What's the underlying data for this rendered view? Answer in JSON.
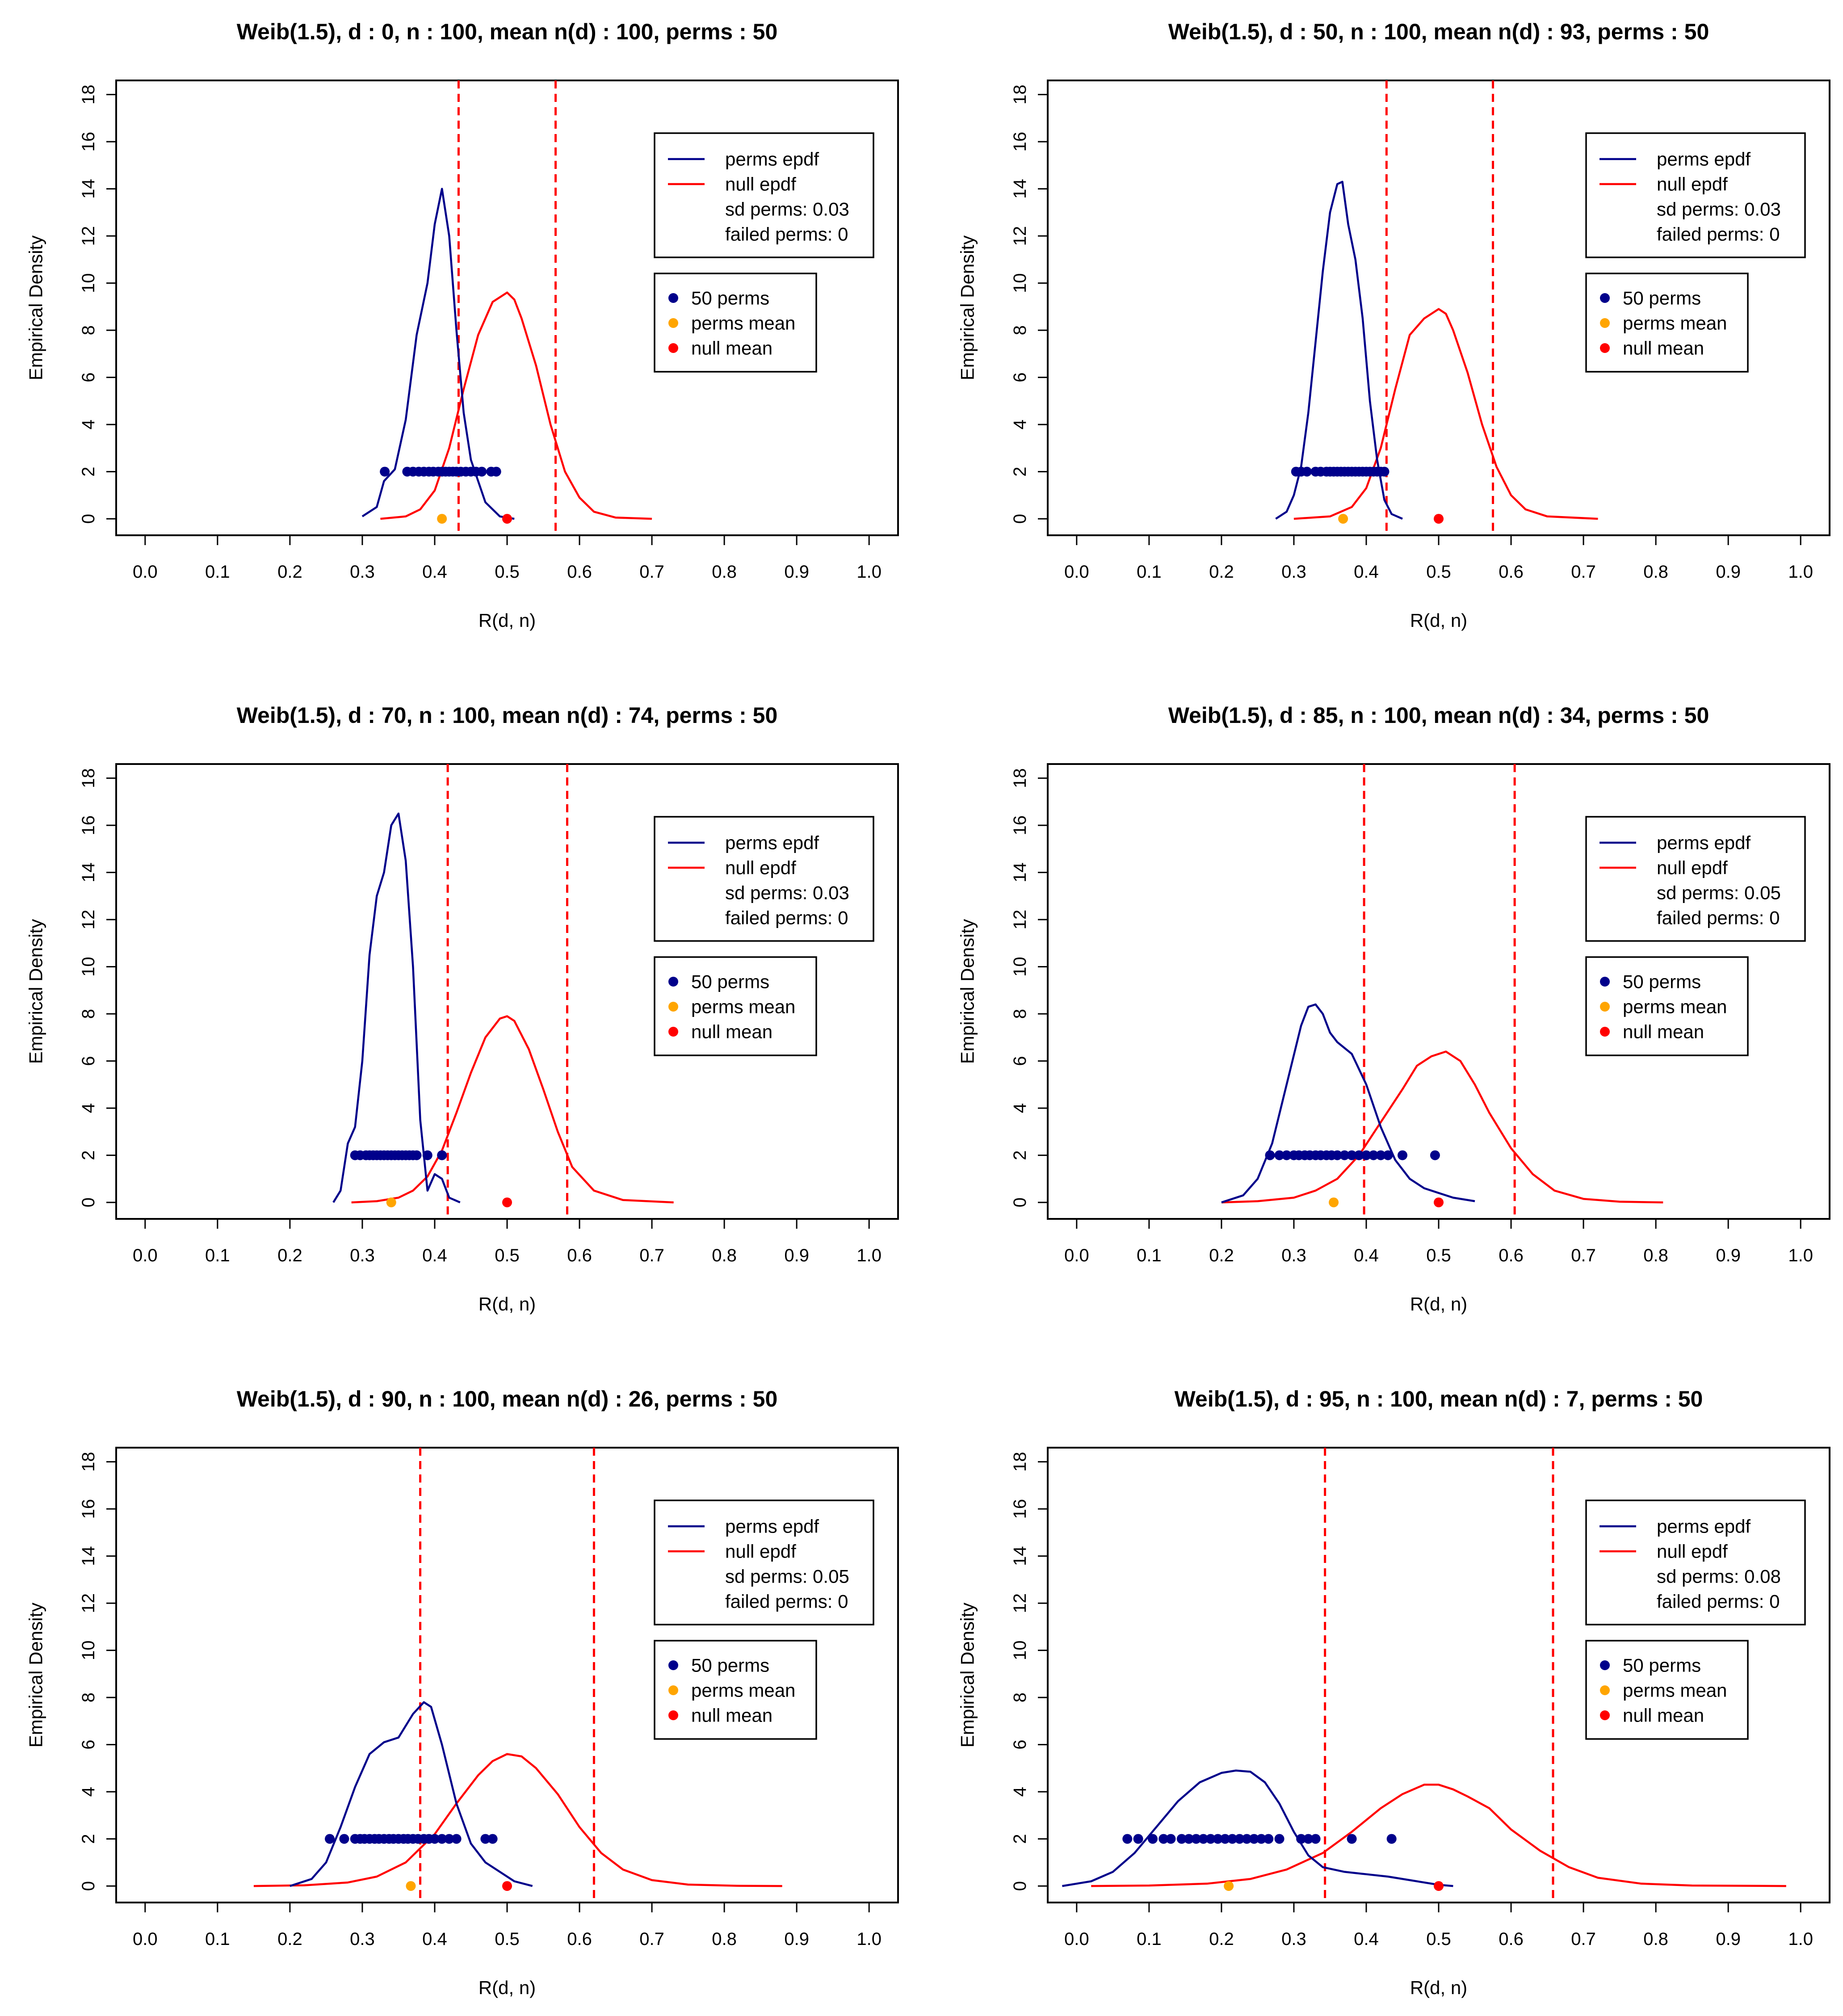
{
  "colors": {
    "perms_epdf": "#00008b",
    "null_epdf": "#ff0000",
    "perms_points": "#00008b",
    "perms_mean": "#ffa500",
    "null_mean": "#ff0000",
    "quantile_lines": "#ff0000"
  },
  "shared": {
    "xlabel": "R(d, n)",
    "ylabel": "Empirical Density",
    "xticks": [
      0.0,
      0.1,
      0.2,
      0.3,
      0.4,
      0.5,
      0.6,
      0.7,
      0.8,
      0.9,
      1.0
    ],
    "xtick_labels": [
      "0.0",
      "0.1",
      "0.2",
      "0.3",
      "0.4",
      "0.5",
      "0.6",
      "0.7",
      "0.8",
      "0.9",
      "1.0"
    ],
    "yticks": [
      0,
      2,
      4,
      6,
      8,
      10,
      12,
      14,
      16,
      18
    ],
    "ytick_labels": [
      "0",
      "2",
      "4",
      "6",
      "8",
      "10",
      "12",
      "14",
      "16",
      "18"
    ],
    "legend1": {
      "perms": "perms epdf",
      "null": "null epdf",
      "sd_prefix": "sd perms: ",
      "failed_prefix": "failed perms: "
    },
    "legend2": {
      "null_mean": "null mean",
      "perms_mean": "perms mean"
    }
  },
  "chart_data": [
    {
      "type": "line",
      "title": "Weib(1.5),  d : 0, n : 100,  mean n(d) : 100,  perms : 50",
      "xlim": [
        -0.04,
        1.04
      ],
      "ylim": [
        -0.7,
        18.6
      ],
      "vlines": [
        0.433,
        0.567
      ],
      "perms_epdf": {
        "x": [
          0.3,
          0.32,
          0.33,
          0.345,
          0.36,
          0.375,
          0.39,
          0.4,
          0.41,
          0.42,
          0.43,
          0.44,
          0.45,
          0.46,
          0.47,
          0.49,
          0.51
        ],
        "y": [
          0.1,
          0.5,
          1.6,
          2.1,
          4.2,
          7.8,
          10.0,
          12.5,
          14.0,
          12.0,
          8.0,
          4.5,
          2.5,
          1.6,
          0.7,
          0.1,
          0.0
        ]
      },
      "null_epdf": {
        "x": [
          0.325,
          0.36,
          0.38,
          0.4,
          0.42,
          0.44,
          0.46,
          0.48,
          0.5,
          0.51,
          0.52,
          0.54,
          0.56,
          0.58,
          0.6,
          0.62,
          0.65,
          0.7
        ],
        "y": [
          0.0,
          0.1,
          0.4,
          1.2,
          3.0,
          5.5,
          7.8,
          9.2,
          9.6,
          9.3,
          8.5,
          6.5,
          4.0,
          2.0,
          0.9,
          0.3,
          0.05,
          0.0
        ]
      },
      "perm_points": [
        0.331,
        0.362,
        0.37,
        0.378,
        0.385,
        0.392,
        0.398,
        0.405,
        0.41,
        0.415,
        0.42,
        0.425,
        0.43,
        0.436,
        0.443,
        0.45,
        0.457,
        0.465,
        0.478,
        0.485
      ],
      "perm_points_y": 2,
      "perms_mean": 0.41,
      "null_mean": 0.5,
      "sd_perms": "0.03",
      "failed_perms": "0",
      "n_perms_label": "50 perms"
    },
    {
      "type": "line",
      "title": "Weib(1.5),  d : 50, n : 100,  mean n(d) : 93,  perms : 50",
      "xlim": [
        -0.04,
        1.04
      ],
      "ylim": [
        -0.7,
        18.6
      ],
      "vlines": [
        0.428,
        0.575
      ],
      "perms_epdf": {
        "x": [
          0.275,
          0.29,
          0.3,
          0.31,
          0.32,
          0.33,
          0.34,
          0.35,
          0.36,
          0.367,
          0.375,
          0.385,
          0.395,
          0.405,
          0.415,
          0.425,
          0.435,
          0.45
        ],
        "y": [
          0.0,
          0.3,
          1.0,
          2.2,
          4.5,
          7.5,
          10.5,
          13.0,
          14.2,
          14.3,
          12.5,
          11.0,
          8.5,
          5.0,
          2.5,
          0.8,
          0.2,
          0.0
        ]
      },
      "null_epdf": {
        "x": [
          0.3,
          0.35,
          0.38,
          0.4,
          0.42,
          0.44,
          0.46,
          0.48,
          0.5,
          0.51,
          0.52,
          0.54,
          0.56,
          0.58,
          0.6,
          0.62,
          0.65,
          0.72
        ],
        "y": [
          0.0,
          0.1,
          0.5,
          1.3,
          3.0,
          5.5,
          7.8,
          8.5,
          8.9,
          8.7,
          8.0,
          6.2,
          4.0,
          2.2,
          1.0,
          0.4,
          0.1,
          0.0
        ]
      },
      "perm_points": [
        0.303,
        0.31,
        0.318,
        0.33,
        0.337,
        0.345,
        0.35,
        0.355,
        0.36,
        0.365,
        0.37,
        0.375,
        0.38,
        0.385,
        0.39,
        0.395,
        0.4,
        0.405,
        0.41,
        0.415,
        0.42,
        0.425
      ],
      "perm_points_y": 2,
      "perms_mean": 0.368,
      "null_mean": 0.5,
      "sd_perms": "0.03",
      "failed_perms": "0",
      "n_perms_label": "50 perms"
    },
    {
      "type": "line",
      "title": "Weib(1.5),  d : 70, n : 100,  mean n(d) : 74,  perms : 50",
      "xlim": [
        -0.04,
        1.04
      ],
      "ylim": [
        -0.7,
        18.6
      ],
      "vlines": [
        0.418,
        0.583
      ],
      "perms_epdf": {
        "x": [
          0.26,
          0.27,
          0.28,
          0.29,
          0.3,
          0.31,
          0.32,
          0.33,
          0.34,
          0.35,
          0.36,
          0.37,
          0.38,
          0.39,
          0.4,
          0.41,
          0.42,
          0.435
        ],
        "y": [
          0.0,
          0.5,
          2.5,
          3.2,
          6.0,
          10.5,
          13.0,
          14.0,
          16.0,
          16.5,
          14.5,
          10.0,
          3.5,
          0.5,
          1.2,
          1.0,
          0.2,
          0.0
        ]
      },
      "null_epdf": {
        "x": [
          0.285,
          0.32,
          0.35,
          0.37,
          0.39,
          0.41,
          0.43,
          0.45,
          0.47,
          0.49,
          0.5,
          0.51,
          0.53,
          0.55,
          0.57,
          0.59,
          0.62,
          0.66,
          0.73
        ],
        "y": [
          0.0,
          0.05,
          0.2,
          0.5,
          1.1,
          2.2,
          3.8,
          5.5,
          7.0,
          7.8,
          7.9,
          7.7,
          6.5,
          4.8,
          3.0,
          1.5,
          0.5,
          0.1,
          0.0
        ]
      },
      "perm_points": [
        0.29,
        0.297,
        0.305,
        0.31,
        0.315,
        0.32,
        0.325,
        0.33,
        0.335,
        0.34,
        0.345,
        0.35,
        0.355,
        0.36,
        0.365,
        0.37,
        0.375,
        0.39,
        0.41
      ],
      "perm_points_y": 2,
      "perms_mean": 0.34,
      "null_mean": 0.5,
      "sd_perms": "0.03",
      "failed_perms": "0",
      "n_perms_label": "50 perms"
    },
    {
      "type": "line",
      "title": "Weib(1.5),  d : 85, n : 100,  mean n(d) : 34,  perms : 50",
      "xlim": [
        -0.04,
        1.04
      ],
      "ylim": [
        -0.7,
        18.6
      ],
      "vlines": [
        0.397,
        0.605
      ],
      "perms_epdf": {
        "x": [
          0.2,
          0.23,
          0.25,
          0.27,
          0.29,
          0.31,
          0.32,
          0.33,
          0.34,
          0.35,
          0.36,
          0.38,
          0.4,
          0.42,
          0.44,
          0.46,
          0.48,
          0.5,
          0.52,
          0.55
        ],
        "y": [
          0.0,
          0.3,
          1.0,
          2.5,
          5.0,
          7.5,
          8.3,
          8.4,
          8.0,
          7.2,
          6.8,
          6.3,
          5.0,
          3.2,
          1.8,
          1.0,
          0.6,
          0.4,
          0.2,
          0.05
        ]
      },
      "null_epdf": {
        "x": [
          0.2,
          0.25,
          0.3,
          0.33,
          0.36,
          0.39,
          0.42,
          0.45,
          0.47,
          0.49,
          0.51,
          0.53,
          0.55,
          0.57,
          0.6,
          0.63,
          0.66,
          0.7,
          0.75,
          0.81
        ],
        "y": [
          0.0,
          0.05,
          0.2,
          0.5,
          1.0,
          2.0,
          3.4,
          4.8,
          5.8,
          6.2,
          6.4,
          6.0,
          5.0,
          3.8,
          2.3,
          1.2,
          0.5,
          0.15,
          0.03,
          0.0
        ]
      },
      "perm_points": [
        0.267,
        0.28,
        0.29,
        0.3,
        0.307,
        0.315,
        0.322,
        0.33,
        0.337,
        0.345,
        0.352,
        0.36,
        0.37,
        0.38,
        0.39,
        0.4,
        0.41,
        0.42,
        0.43,
        0.45,
        0.495
      ],
      "perm_points_y": 2,
      "perms_mean": 0.355,
      "null_mean": 0.5,
      "sd_perms": "0.05",
      "failed_perms": "0",
      "n_perms_label": "50 perms"
    },
    {
      "type": "line",
      "title": "Weib(1.5),  d : 90, n : 100,  mean n(d) : 26,  perms : 50",
      "xlim": [
        -0.04,
        1.04
      ],
      "ylim": [
        -0.7,
        18.6
      ],
      "vlines": [
        0.38,
        0.62
      ],
      "perms_epdf": {
        "x": [
          0.2,
          0.23,
          0.25,
          0.27,
          0.29,
          0.31,
          0.33,
          0.35,
          0.37,
          0.385,
          0.395,
          0.41,
          0.43,
          0.45,
          0.47,
          0.49,
          0.51,
          0.535
        ],
        "y": [
          0.0,
          0.3,
          1.0,
          2.5,
          4.2,
          5.6,
          6.1,
          6.3,
          7.3,
          7.8,
          7.6,
          6.0,
          3.5,
          1.8,
          1.0,
          0.6,
          0.2,
          0.0
        ]
      },
      "null_epdf": {
        "x": [
          0.15,
          0.22,
          0.28,
          0.32,
          0.36,
          0.4,
          0.43,
          0.46,
          0.48,
          0.5,
          0.52,
          0.54,
          0.57,
          0.6,
          0.63,
          0.66,
          0.7,
          0.75,
          0.82,
          0.88
        ],
        "y": [
          0.0,
          0.03,
          0.15,
          0.4,
          1.0,
          2.2,
          3.5,
          4.7,
          5.3,
          5.6,
          5.5,
          5.0,
          3.9,
          2.5,
          1.4,
          0.7,
          0.25,
          0.06,
          0.01,
          0.0
        ]
      },
      "perm_points": [
        0.255,
        0.275,
        0.29,
        0.297,
        0.303,
        0.31,
        0.317,
        0.323,
        0.33,
        0.337,
        0.343,
        0.35,
        0.357,
        0.363,
        0.37,
        0.377,
        0.385,
        0.392,
        0.4,
        0.41,
        0.42,
        0.43,
        0.47,
        0.48
      ],
      "perm_points_y": 2,
      "perms_mean": 0.367,
      "null_mean": 0.5,
      "sd_perms": "0.05",
      "failed_perms": "0",
      "n_perms_label": "50 perms"
    },
    {
      "type": "line",
      "title": "Weib(1.5),  d : 95, n : 100,  mean n(d) : 7,  perms : 50",
      "xlim": [
        -0.04,
        1.04
      ],
      "ylim": [
        -0.7,
        18.6
      ],
      "vlines": [
        0.343,
        0.658
      ],
      "perms_epdf": {
        "x": [
          -0.02,
          0.02,
          0.05,
          0.08,
          0.11,
          0.14,
          0.17,
          0.2,
          0.22,
          0.24,
          0.26,
          0.28,
          0.3,
          0.32,
          0.34,
          0.37,
          0.4,
          0.43,
          0.46,
          0.5,
          0.52
        ],
        "y": [
          0.0,
          0.2,
          0.6,
          1.4,
          2.5,
          3.6,
          4.4,
          4.8,
          4.9,
          4.85,
          4.4,
          3.5,
          2.3,
          1.3,
          0.8,
          0.6,
          0.5,
          0.4,
          0.25,
          0.05,
          0.0
        ]
      },
      "null_epdf": {
        "x": [
          0.02,
          0.1,
          0.18,
          0.24,
          0.29,
          0.34,
          0.38,
          0.42,
          0.45,
          0.48,
          0.5,
          0.52,
          0.54,
          0.57,
          0.6,
          0.64,
          0.68,
          0.72,
          0.78,
          0.85,
          0.98
        ],
        "y": [
          0.0,
          0.02,
          0.1,
          0.3,
          0.7,
          1.4,
          2.3,
          3.3,
          3.9,
          4.3,
          4.3,
          4.1,
          3.8,
          3.3,
          2.4,
          1.5,
          0.8,
          0.35,
          0.1,
          0.02,
          0.0
        ]
      },
      "perm_points": [
        0.07,
        0.085,
        0.105,
        0.12,
        0.13,
        0.145,
        0.155,
        0.165,
        0.175,
        0.185,
        0.195,
        0.205,
        0.215,
        0.225,
        0.235,
        0.245,
        0.255,
        0.265,
        0.28,
        0.31,
        0.32,
        0.33,
        0.38,
        0.435
      ],
      "perm_points_y": 2,
      "perms_mean": 0.21,
      "null_mean": 0.5,
      "sd_perms": "0.08",
      "failed_perms": "0",
      "n_perms_label": "50 perms"
    }
  ]
}
